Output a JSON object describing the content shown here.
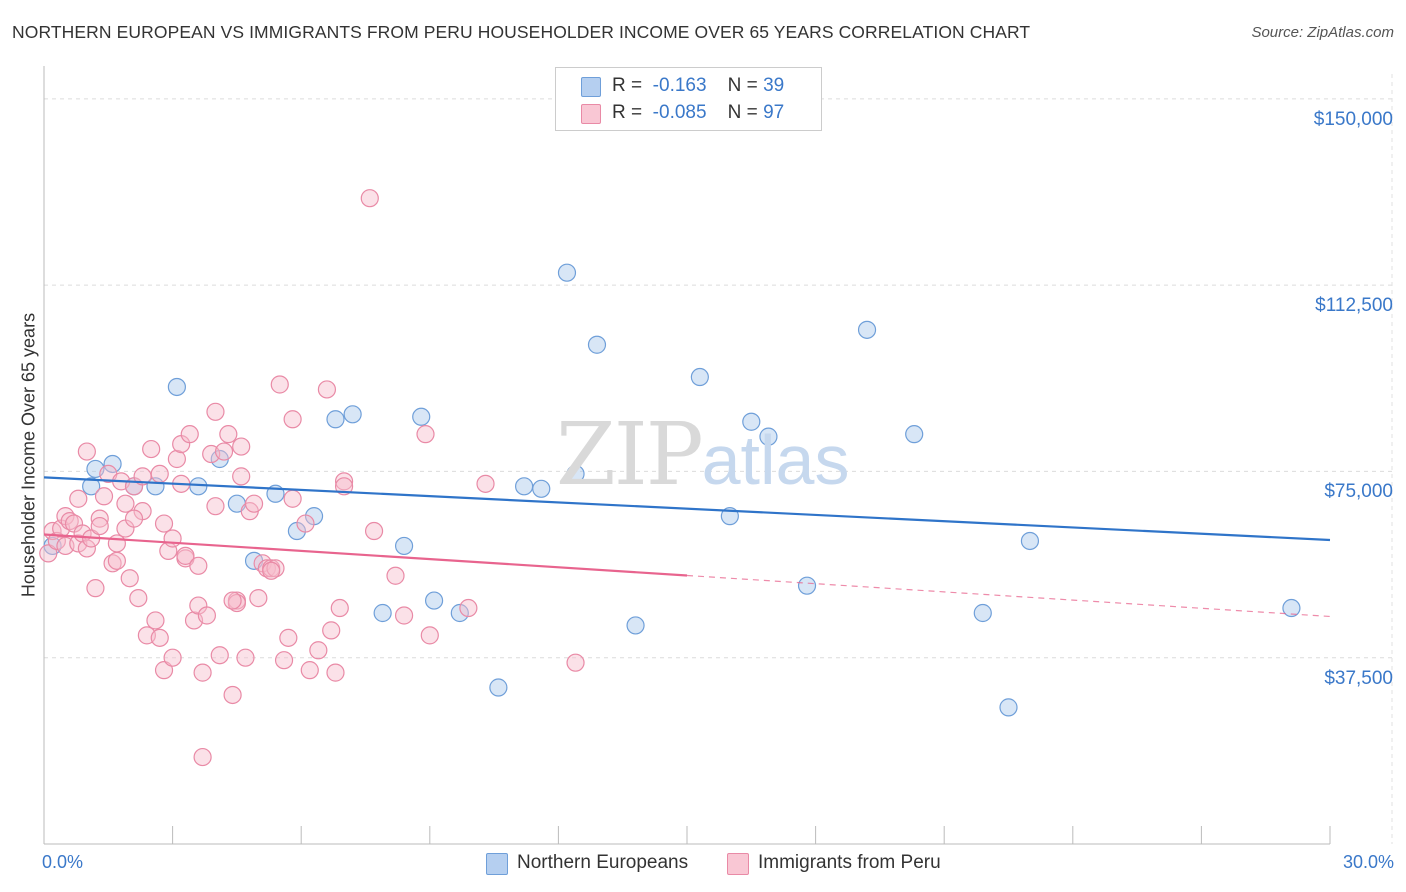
{
  "chart_data": {
    "type": "scatter",
    "title": "NORTHERN EUROPEAN VS IMMIGRANTS FROM PERU HOUSEHOLDER INCOME OVER 65 YEARS CORRELATION CHART",
    "source": "Source: ZipAtlas.com",
    "xlabel": "",
    "ylabel": "Householder Income Over 65 years",
    "xlim": [
      0,
      30
    ],
    "ylim": [
      0,
      155000
    ],
    "x_tick_labels": [
      {
        "value": 0,
        "label": "0.0%"
      },
      {
        "value": 30,
        "label": "30.0%"
      }
    ],
    "x_minor_ticks": [
      0,
      3,
      6,
      9,
      12,
      15,
      18,
      21,
      24,
      27,
      30
    ],
    "y_ticks": [
      {
        "value": 150000,
        "label": "$150,000"
      },
      {
        "value": 112500,
        "label": "$112,500"
      },
      {
        "value": 75000,
        "label": "$75,000"
      },
      {
        "value": 37500,
        "label": "$37,500"
      }
    ],
    "grid": true,
    "watermark": {
      "zip": "ZIP",
      "atlas": "atlas"
    },
    "legend_placement": "top-center",
    "series": [
      {
        "name": "Northern Europeans",
        "color": "#a9c8ec",
        "edge": "#6f9fd9",
        "line_color": "#2f74c9",
        "r_label": "R =",
        "r_value": "-0.163",
        "n_label": "N =",
        "n_value": "39",
        "trend": {
          "x0": 0,
          "y0": 73800,
          "x1": 30,
          "y1": 61200,
          "solid_until": 30
        },
        "points": [
          [
            0.2,
            60000
          ],
          [
            1.1,
            72000
          ],
          [
            1.2,
            75500
          ],
          [
            1.6,
            76500
          ],
          [
            2.1,
            72000
          ],
          [
            2.6,
            72000
          ],
          [
            3.1,
            92000
          ],
          [
            3.6,
            72000
          ],
          [
            4.1,
            77500
          ],
          [
            4.5,
            68500
          ],
          [
            4.9,
            57000
          ],
          [
            5.4,
            70500
          ],
          [
            5.9,
            63000
          ],
          [
            6.3,
            66000
          ],
          [
            6.8,
            85500
          ],
          [
            7.2,
            86500
          ],
          [
            7.9,
            46500
          ],
          [
            8.4,
            60000
          ],
          [
            8.8,
            86000
          ],
          [
            9.1,
            49000
          ],
          [
            9.7,
            46500
          ],
          [
            10.6,
            31500
          ],
          [
            11.2,
            72000
          ],
          [
            11.6,
            71500
          ],
          [
            12.2,
            115000
          ],
          [
            12.4,
            74500
          ],
          [
            12.9,
            100500
          ],
          [
            13.8,
            44000
          ],
          [
            15.3,
            94000
          ],
          [
            16.0,
            66000
          ],
          [
            16.5,
            85000
          ],
          [
            16.9,
            82000
          ],
          [
            17.8,
            52000
          ],
          [
            19.2,
            103500
          ],
          [
            20.3,
            82500
          ],
          [
            21.9,
            46500
          ],
          [
            22.5,
            27500
          ],
          [
            23.0,
            61000
          ],
          [
            29.1,
            47500
          ]
        ]
      },
      {
        "name": "Immigrants from Peru",
        "color": "#f7bccb",
        "edge": "#e98aa6",
        "line_color": "#e8648e",
        "r_label": "R =",
        "r_value": "-0.085",
        "n_label": "N =",
        "n_value": "97",
        "trend": {
          "x0": 0,
          "y0": 62300,
          "x1": 30,
          "y1": 45800,
          "solid_until": 15
        },
        "points": [
          [
            0.1,
            58500
          ],
          [
            0.2,
            63000
          ],
          [
            0.3,
            61000
          ],
          [
            0.4,
            63500
          ],
          [
            0.5,
            66000
          ],
          [
            0.5,
            60000
          ],
          [
            0.6,
            65000
          ],
          [
            0.7,
            64500
          ],
          [
            0.8,
            60500
          ],
          [
            0.8,
            69500
          ],
          [
            0.9,
            62500
          ],
          [
            1.0,
            79000
          ],
          [
            1.0,
            59500
          ],
          [
            1.1,
            61500
          ],
          [
            1.2,
            51500
          ],
          [
            1.3,
            65500
          ],
          [
            1.4,
            70000
          ],
          [
            1.5,
            74500
          ],
          [
            1.6,
            56500
          ],
          [
            1.7,
            60500
          ],
          [
            1.7,
            57000
          ],
          [
            1.8,
            73000
          ],
          [
            1.9,
            63500
          ],
          [
            1.9,
            68500
          ],
          [
            2.0,
            53500
          ],
          [
            2.1,
            72000
          ],
          [
            2.2,
            49500
          ],
          [
            2.3,
            74000
          ],
          [
            2.3,
            67000
          ],
          [
            2.4,
            42000
          ],
          [
            2.5,
            79500
          ],
          [
            2.6,
            45000
          ],
          [
            2.7,
            74500
          ],
          [
            2.7,
            41500
          ],
          [
            2.8,
            64500
          ],
          [
            2.8,
            35000
          ],
          [
            2.9,
            59000
          ],
          [
            3.0,
            61500
          ],
          [
            3.0,
            37500
          ],
          [
            3.1,
            77500
          ],
          [
            3.2,
            80500
          ],
          [
            3.3,
            57500
          ],
          [
            3.3,
            58000
          ],
          [
            3.4,
            82500
          ],
          [
            3.5,
            45000
          ],
          [
            3.6,
            48000
          ],
          [
            3.6,
            56000
          ],
          [
            3.7,
            34500
          ],
          [
            3.8,
            46000
          ],
          [
            3.9,
            78500
          ],
          [
            4.0,
            87000
          ],
          [
            4.0,
            68000
          ],
          [
            4.1,
            38000
          ],
          [
            4.2,
            79000
          ],
          [
            4.3,
            82500
          ],
          [
            4.4,
            30000
          ],
          [
            4.5,
            49000
          ],
          [
            4.5,
            48500
          ],
          [
            4.6,
            80000
          ],
          [
            4.6,
            74000
          ],
          [
            4.7,
            37500
          ],
          [
            4.8,
            67000
          ],
          [
            4.9,
            68500
          ],
          [
            5.0,
            49500
          ],
          [
            5.1,
            56500
          ],
          [
            5.2,
            55500
          ],
          [
            5.3,
            55500
          ],
          [
            5.4,
            55500
          ],
          [
            5.5,
            92500
          ],
          [
            5.6,
            37000
          ],
          [
            5.7,
            41500
          ],
          [
            5.8,
            85500
          ],
          [
            5.8,
            69500
          ],
          [
            6.1,
            64500
          ],
          [
            6.2,
            35000
          ],
          [
            6.4,
            39000
          ],
          [
            6.6,
            91500
          ],
          [
            6.7,
            43000
          ],
          [
            6.8,
            34500
          ],
          [
            6.9,
            47500
          ],
          [
            7.0,
            73000
          ],
          [
            7.0,
            72000
          ],
          [
            7.6,
            130000
          ],
          [
            7.7,
            63000
          ],
          [
            8.2,
            54000
          ],
          [
            8.4,
            46000
          ],
          [
            8.9,
            82500
          ],
          [
            9.0,
            42000
          ],
          [
            9.9,
            47500
          ],
          [
            10.3,
            72500
          ],
          [
            12.4,
            36500
          ],
          [
            3.7,
            17500
          ],
          [
            1.3,
            64000
          ],
          [
            2.1,
            65500
          ],
          [
            4.4,
            49000
          ],
          [
            3.2,
            72500
          ],
          [
            5.3,
            55000
          ]
        ]
      }
    ]
  }
}
